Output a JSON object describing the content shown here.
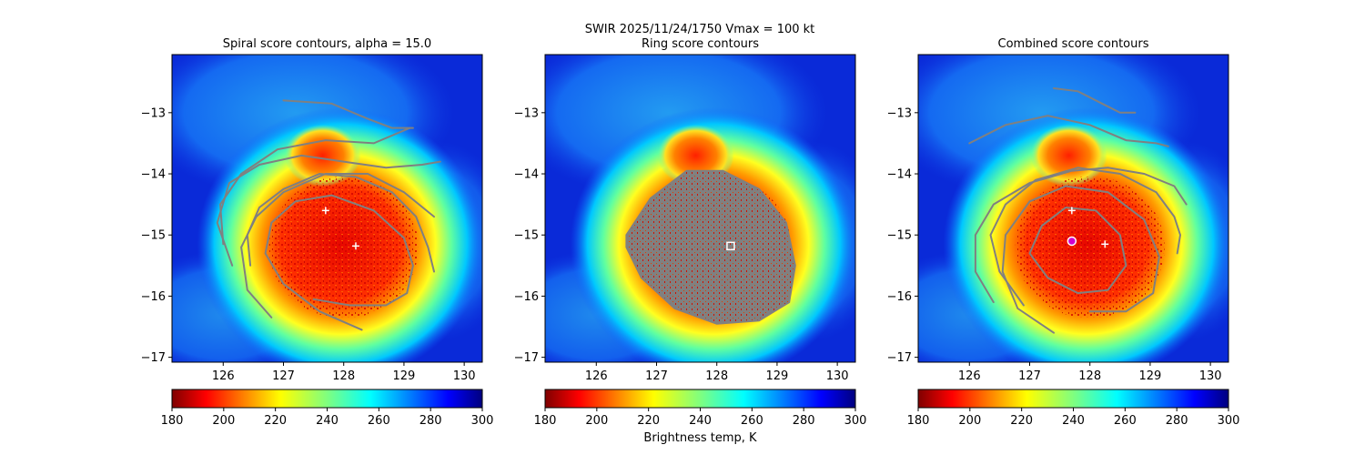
{
  "figure": {
    "suptitle": "SWIR  2025/11/24/1750    Vmax = 100 kt",
    "colorbar_label": "Brightness temp, K"
  },
  "colors": {
    "contour": "#808080",
    "ring_fill": "#808080",
    "cloud_core": "#e01000",
    "background": "#0a2ad8"
  },
  "chart_data": [
    {
      "type": "heatmap",
      "title": "Spiral score contours, alpha = 15.0",
      "xlim": [
        125.15,
        130.3
      ],
      "ylim": [
        -17.08,
        -12.05
      ],
      "xticks": [
        126,
        127,
        128,
        129,
        130
      ],
      "yticks": [
        -13,
        -14,
        -15,
        -16,
        -17
      ],
      "colorbar": {
        "range": [
          180,
          300
        ],
        "ticks": [
          180,
          200,
          220,
          240,
          260,
          280,
          300
        ]
      },
      "markers": [
        {
          "name": "first-guess",
          "symbol": "+",
          "x": 127.7,
          "y": -14.6
        },
        {
          "name": "secondary",
          "symbol": "+",
          "x": 128.2,
          "y": -15.18
        }
      ],
      "contours": [
        [
          [
            126.45,
            -15.5
          ],
          [
            126.4,
            -15.0
          ],
          [
            126.6,
            -14.55
          ],
          [
            127.0,
            -14.25
          ],
          [
            127.6,
            -14.0
          ],
          [
            128.2,
            -14.05
          ],
          [
            128.8,
            -14.3
          ],
          [
            129.2,
            -14.7
          ],
          [
            129.4,
            -15.2
          ],
          [
            129.5,
            -15.6
          ]
        ],
        [
          [
            126.8,
            -16.35
          ],
          [
            126.4,
            -15.9
          ],
          [
            126.3,
            -15.2
          ],
          [
            126.55,
            -14.7
          ],
          [
            127.0,
            -14.3
          ],
          [
            127.7,
            -14.0
          ],
          [
            128.4,
            -14.0
          ],
          [
            129.0,
            -14.3
          ],
          [
            129.5,
            -14.7
          ]
        ],
        [
          [
            126.15,
            -15.5
          ],
          [
            125.9,
            -14.8
          ],
          [
            126.1,
            -14.15
          ],
          [
            126.6,
            -13.85
          ],
          [
            127.3,
            -13.7
          ],
          [
            128.0,
            -13.8
          ],
          [
            128.7,
            -13.9
          ],
          [
            129.3,
            -13.85
          ],
          [
            129.6,
            -13.8
          ]
        ],
        [
          [
            126.0,
            -15.15
          ],
          [
            125.95,
            -14.5
          ],
          [
            126.3,
            -14.0
          ],
          [
            126.9,
            -13.6
          ],
          [
            127.7,
            -13.45
          ],
          [
            128.5,
            -13.5
          ],
          [
            129.1,
            -13.25
          ]
        ],
        [
          [
            127.0,
            -12.8
          ],
          [
            127.8,
            -12.85
          ],
          [
            128.4,
            -13.1
          ],
          [
            128.8,
            -13.25
          ],
          [
            129.15,
            -13.25
          ]
        ],
        [
          [
            128.3,
            -16.55
          ],
          [
            127.6,
            -16.25
          ],
          [
            127.0,
            -15.8
          ],
          [
            126.7,
            -15.3
          ],
          [
            126.8,
            -14.8
          ],
          [
            127.2,
            -14.45
          ],
          [
            127.8,
            -14.35
          ],
          [
            128.5,
            -14.6
          ],
          [
            129.0,
            -15.05
          ],
          [
            129.15,
            -15.5
          ],
          [
            129.05,
            -15.95
          ],
          [
            128.7,
            -16.15
          ],
          [
            128.1,
            -16.15
          ],
          [
            127.5,
            -16.05
          ]
        ]
      ]
    },
    {
      "type": "heatmap",
      "title": "Ring score contours",
      "xlim": [
        125.15,
        130.3
      ],
      "ylim": [
        -17.08,
        -12.05
      ],
      "xticks": [
        126,
        127,
        128,
        129,
        130
      ],
      "yticks": [
        -13,
        -14,
        -15,
        -16,
        -17
      ],
      "colorbar": {
        "range": [
          180,
          300
        ],
        "ticks": [
          180,
          200,
          220,
          240,
          260,
          280,
          300
        ]
      },
      "markers": [
        {
          "name": "ring-center",
          "symbol": "square",
          "x": 128.23,
          "y": -15.18
        }
      ],
      "ring_region": [
        [
          126.5,
          -15.0
        ],
        [
          126.9,
          -14.4
        ],
        [
          127.5,
          -13.95
        ],
        [
          128.1,
          -13.95
        ],
        [
          128.7,
          -14.25
        ],
        [
          129.15,
          -14.8
        ],
        [
          129.3,
          -15.5
        ],
        [
          129.2,
          -16.1
        ],
        [
          128.7,
          -16.4
        ],
        [
          128.0,
          -16.45
        ],
        [
          127.3,
          -16.2
        ],
        [
          126.75,
          -15.7
        ],
        [
          126.5,
          -15.2
        ]
      ]
    },
    {
      "type": "heatmap",
      "title": "Combined score contours",
      "xlim": [
        125.15,
        130.3
      ],
      "ylim": [
        -17.08,
        -12.05
      ],
      "xticks": [
        126,
        127,
        128,
        129,
        130
      ],
      "yticks": [
        -13,
        -14,
        -15,
        -16,
        -17
      ],
      "colorbar": {
        "range": [
          180,
          300
        ],
        "ticks": [
          180,
          200,
          220,
          240,
          260,
          280,
          300
        ]
      },
      "markers": [
        {
          "name": "first-guess",
          "symbol": "+",
          "x": 127.7,
          "y": -14.6
        },
        {
          "name": "combined-center",
          "symbol": "circle",
          "x": 127.7,
          "y": -15.1
        },
        {
          "name": "secondary",
          "symbol": "+",
          "x": 128.25,
          "y": -15.15
        }
      ],
      "contours": [
        [
          [
            127.0,
            -15.3
          ],
          [
            127.2,
            -14.85
          ],
          [
            127.6,
            -14.55
          ],
          [
            128.1,
            -14.6
          ],
          [
            128.5,
            -15.0
          ],
          [
            128.6,
            -15.5
          ],
          [
            128.3,
            -15.9
          ],
          [
            127.8,
            -15.95
          ],
          [
            127.3,
            -15.7
          ],
          [
            127.0,
            -15.3
          ]
        ],
        [
          [
            127.4,
            -16.6
          ],
          [
            126.8,
            -16.2
          ],
          [
            126.55,
            -15.6
          ],
          [
            126.6,
            -15.0
          ],
          [
            127.0,
            -14.45
          ],
          [
            127.6,
            -14.2
          ],
          [
            128.3,
            -14.3
          ],
          [
            128.9,
            -14.75
          ],
          [
            129.15,
            -15.35
          ],
          [
            129.05,
            -15.95
          ],
          [
            128.6,
            -16.25
          ],
          [
            128.0,
            -16.25
          ]
        ],
        [
          [
            126.9,
            -16.15
          ],
          [
            126.5,
            -15.6
          ],
          [
            126.35,
            -15.0
          ],
          [
            126.6,
            -14.5
          ],
          [
            127.1,
            -14.1
          ],
          [
            127.8,
            -13.9
          ],
          [
            128.5,
            -14.0
          ],
          [
            129.1,
            -14.3
          ],
          [
            129.4,
            -14.7
          ],
          [
            129.5,
            -15.0
          ],
          [
            129.45,
            -15.3
          ]
        ],
        [
          [
            126.4,
            -16.1
          ],
          [
            126.1,
            -15.6
          ],
          [
            126.1,
            -15.0
          ],
          [
            126.4,
            -14.5
          ],
          [
            127.0,
            -14.15
          ],
          [
            127.7,
            -13.95
          ],
          [
            128.3,
            -13.9
          ],
          [
            128.9,
            -14.0
          ],
          [
            129.4,
            -14.2
          ],
          [
            129.6,
            -14.5
          ]
        ],
        [
          [
            126.0,
            -13.5
          ],
          [
            126.6,
            -13.2
          ],
          [
            127.3,
            -13.05
          ],
          [
            128.0,
            -13.2
          ],
          [
            128.6,
            -13.45
          ],
          [
            129.1,
            -13.5
          ],
          [
            129.3,
            -13.55
          ]
        ],
        [
          [
            127.4,
            -12.6
          ],
          [
            127.8,
            -12.65
          ],
          [
            128.2,
            -12.85
          ],
          [
            128.5,
            -13.0
          ],
          [
            128.75,
            -13.0
          ]
        ]
      ]
    }
  ]
}
